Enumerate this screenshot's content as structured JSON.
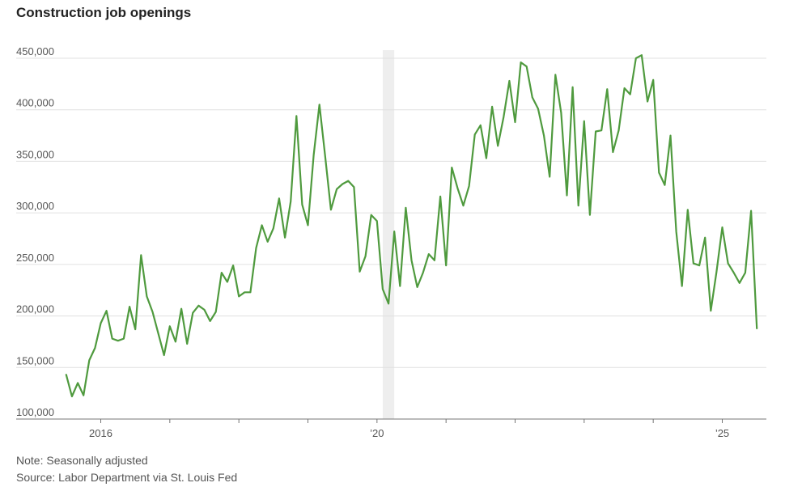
{
  "chart_data": {
    "type": "line",
    "title": "Construction job openings",
    "note": "Note: Seasonally adjusted",
    "source": "Source: Labor Department via St. Louis Fed",
    "xlabel": "",
    "ylabel": "",
    "ylim": [
      100000,
      450000
    ],
    "yticks": [
      100000,
      150000,
      200000,
      250000,
      300000,
      350000,
      400000,
      450000
    ],
    "ytick_labels": [
      "100,000",
      "150,000",
      "200,000",
      "250,000",
      "300,000",
      "350,000",
      "400,000",
      "450,000"
    ],
    "x_start": "2015-07",
    "xlim": [
      "2015-06",
      "2025-12"
    ],
    "xtick_labels": [
      {
        "date": "2016-01",
        "label": "2016"
      },
      {
        "date": "2020-01",
        "label": "’20"
      },
      {
        "date": "2025-01",
        "label": "’25"
      }
    ],
    "recession_band": {
      "start": "2020-02",
      "end": "2020-04"
    },
    "grid": true,
    "line_color": "#4f9a3e",
    "series": [
      {
        "name": "",
        "values": [
          143000,
          122000,
          135000,
          123000,
          157000,
          169000,
          193000,
          205000,
          178000,
          176000,
          178000,
          209000,
          187000,
          259000,
          219000,
          204000,
          183000,
          162000,
          190000,
          175000,
          207000,
          173000,
          203000,
          210000,
          206000,
          195000,
          204000,
          242000,
          233000,
          249000,
          219000,
          223000,
          223000,
          266000,
          288000,
          272000,
          285000,
          314000,
          276000,
          311000,
          394000,
          308000,
          288000,
          356000,
          405000,
          355000,
          303000,
          323000,
          328000,
          331000,
          325000,
          243000,
          258000,
          298000,
          292000,
          226000,
          212000,
          282000,
          229000,
          305000,
          254000,
          228000,
          242000,
          260000,
          254000,
          316000,
          249000,
          344000,
          324000,
          307000,
          326000,
          376000,
          385000,
          353000,
          403000,
          365000,
          393000,
          428000,
          388000,
          446000,
          442000,
          412000,
          401000,
          375000,
          335000,
          434000,
          397000,
          317000,
          422000,
          307000,
          389000,
          298000,
          379000,
          380000,
          420000,
          359000,
          380000,
          421000,
          415000,
          450000,
          453000,
          408000,
          429000,
          339000,
          327000,
          375000,
          282000,
          229000,
          303000,
          251000,
          249000,
          276000,
          205000,
          243000,
          286000,
          251000,
          242000,
          232000,
          242000,
          302000,
          188000
        ]
      }
    ]
  }
}
